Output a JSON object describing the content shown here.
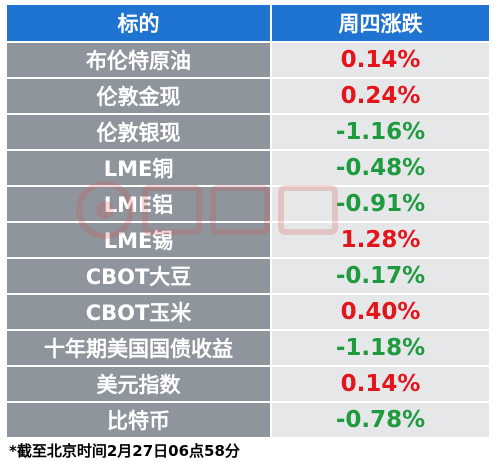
{
  "header": {
    "col_target": "标的",
    "col_change": "周四涨跌"
  },
  "colors": {
    "header_bg": "#1f73d1",
    "name_bg": "#8f959d",
    "value_bg": "#e6e7e9",
    "up": "#e3151b",
    "down": "#1e9a3f"
  },
  "rows": [
    {
      "name": "布伦特原油",
      "change": "0.14%",
      "dir": "up"
    },
    {
      "name": "伦敦金现",
      "change": "0.24%",
      "dir": "up"
    },
    {
      "name": "伦敦银现",
      "change": "-1.16%",
      "dir": "down"
    },
    {
      "name": "LME铜",
      "change": "-0.48%",
      "dir": "down"
    },
    {
      "name": "LME铝",
      "change": "-0.91%",
      "dir": "down"
    },
    {
      "name": "LME锡",
      "change": "1.28%",
      "dir": "up"
    },
    {
      "name": "CBOT大豆",
      "change": "-0.17%",
      "dir": "down"
    },
    {
      "name": "CBOT玉米",
      "change": "0.40%",
      "dir": "up"
    },
    {
      "name": "十年期美国国债收益",
      "change": "-1.18%",
      "dir": "down"
    },
    {
      "name": "美元指数",
      "change": "0.14%",
      "dir": "up"
    },
    {
      "name": "比特币",
      "change": "-0.78%",
      "dir": "down"
    }
  ],
  "watermark": {
    "icon": "cailian-logo-icon"
  },
  "footnote": "*截至北京时间2月27日06点58分"
}
